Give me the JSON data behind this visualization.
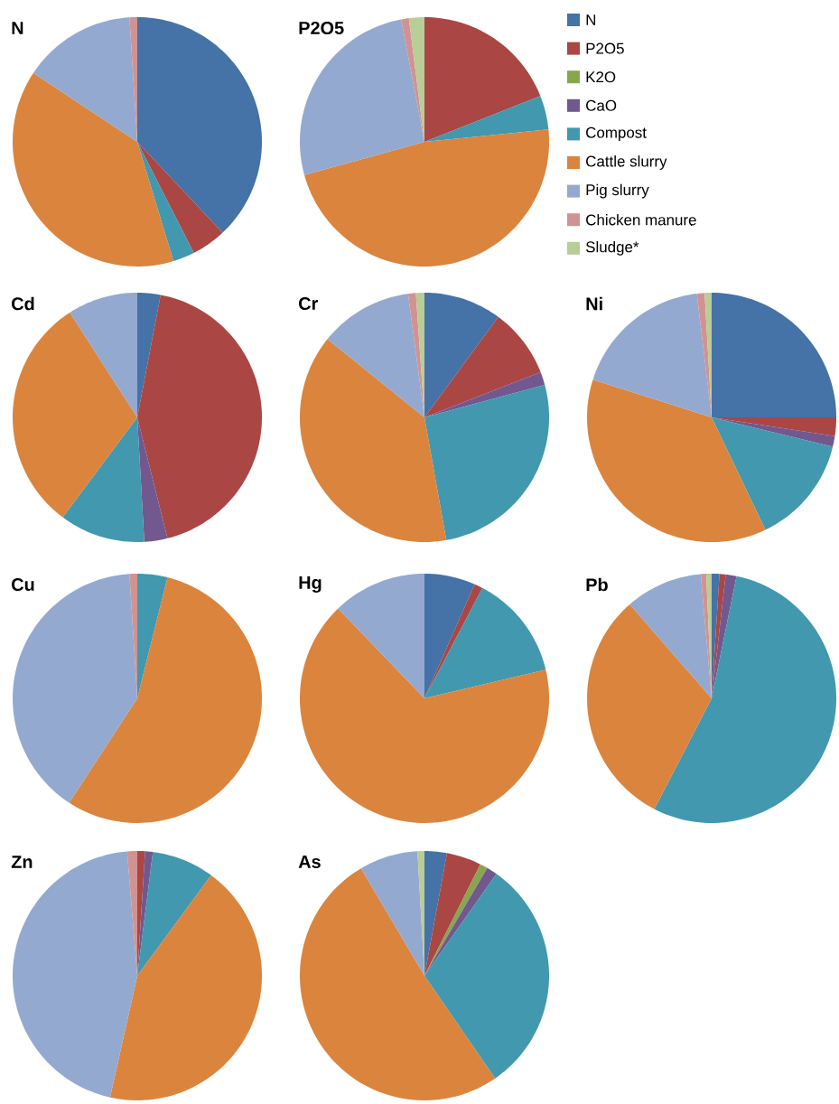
{
  "chart_data": [
    {
      "type": "pie",
      "title": "N",
      "legend": "right",
      "categories": [
        "N",
        "P2O5",
        "K2O",
        "CaO",
        "Compost",
        "Cattle slurry",
        "Pig slurry",
        "Chicken manure",
        "Sludge*"
      ],
      "values": [
        38,
        4.5,
        0,
        0,
        2.8,
        39,
        14.7,
        1.0,
        0
      ],
      "colors": [
        "#4572a7",
        "#aa4643",
        "#89a54e",
        "#71588f",
        "#4198af",
        "#db843d",
        "#93a9cf",
        "#d19392",
        "#b9cd96"
      ]
    },
    {
      "type": "pie",
      "title": "P2O5",
      "values": [
        0,
        19,
        0,
        0,
        4.4,
        47.3,
        26.3,
        1,
        2
      ],
      "colors": [
        "#4572a7",
        "#aa4643",
        "#89a54e",
        "#71588f",
        "#4198af",
        "#db843d",
        "#93a9cf",
        "#d19392",
        "#b9cd96"
      ]
    },
    {
      "type": "pie",
      "title": "Cd",
      "values": [
        3,
        43.1,
        0,
        3,
        11.1,
        30.7,
        9.1,
        0,
        0
      ],
      "colors": [
        "#4572a7",
        "#aa4643",
        "#89a54e",
        "#71588f",
        "#4198af",
        "#db843d",
        "#93a9cf",
        "#d19392",
        "#b9cd96"
      ]
    },
    {
      "type": "pie",
      "title": "Cr",
      "values": [
        10.1,
        9,
        0,
        1.7,
        26.4,
        38.6,
        12.1,
        1,
        1.1
      ],
      "colors": [
        "#4572a7",
        "#aa4643",
        "#89a54e",
        "#71588f",
        "#4198af",
        "#db843d",
        "#93a9cf",
        "#d19392",
        "#b9cd96"
      ]
    },
    {
      "type": "pie",
      "title": "Ni",
      "values": [
        25,
        2.4,
        0,
        1.4,
        14.1,
        37,
        18.2,
        1,
        0.9
      ],
      "colors": [
        "#4572a7",
        "#aa4643",
        "#89a54e",
        "#71588f",
        "#4198af",
        "#db843d",
        "#93a9cf",
        "#d19392",
        "#b9cd96"
      ]
    },
    {
      "type": "pie",
      "title": "Cu",
      "values": [
        0,
        0,
        0,
        0,
        3.9,
        55.3,
        39.8,
        1,
        0
      ],
      "colors": [
        "#4572a7",
        "#aa4643",
        "#89a54e",
        "#71588f",
        "#4198af",
        "#db843d",
        "#93a9cf",
        "#d19392",
        "#b9cd96"
      ]
    },
    {
      "type": "pie",
      "title": "Hg",
      "values": [
        6.6,
        1.1,
        0,
        0,
        13.6,
        66.5,
        12.2,
        0,
        0
      ],
      "colors": [
        "#4572a7",
        "#aa4643",
        "#89a54e",
        "#71588f",
        "#4198af",
        "#db843d",
        "#93a9cf",
        "#d19392",
        "#b9cd96"
      ]
    },
    {
      "type": "pie",
      "title": "Pb",
      "values": [
        1,
        0.8,
        0,
        1.4,
        54.4,
        31,
        10,
        0.7,
        0.7
      ],
      "colors": [
        "#4572a7",
        "#aa4643",
        "#89a54e",
        "#71588f",
        "#4198af",
        "#db843d",
        "#93a9cf",
        "#d19392",
        "#b9cd96"
      ]
    },
    {
      "type": "pie",
      "title": "Zn",
      "values": [
        0,
        1,
        0,
        1,
        8.1,
        43.4,
        45.2,
        1.3,
        0
      ],
      "colors": [
        "#4572a7",
        "#aa4643",
        "#89a54e",
        "#71588f",
        "#4198af",
        "#db843d",
        "#93a9cf",
        "#d19392",
        "#b9cd96"
      ]
    },
    {
      "type": "pie",
      "title": "As",
      "values": [
        2.9,
        4.5,
        1,
        1.4,
        30.6,
        51.1,
        7.6,
        0,
        0.9
      ],
      "colors": [
        "#4572a7",
        "#aa4643",
        "#89a54e",
        "#71588f",
        "#4198af",
        "#db843d",
        "#93a9cf",
        "#d19392",
        "#b9cd96"
      ]
    }
  ]
}
